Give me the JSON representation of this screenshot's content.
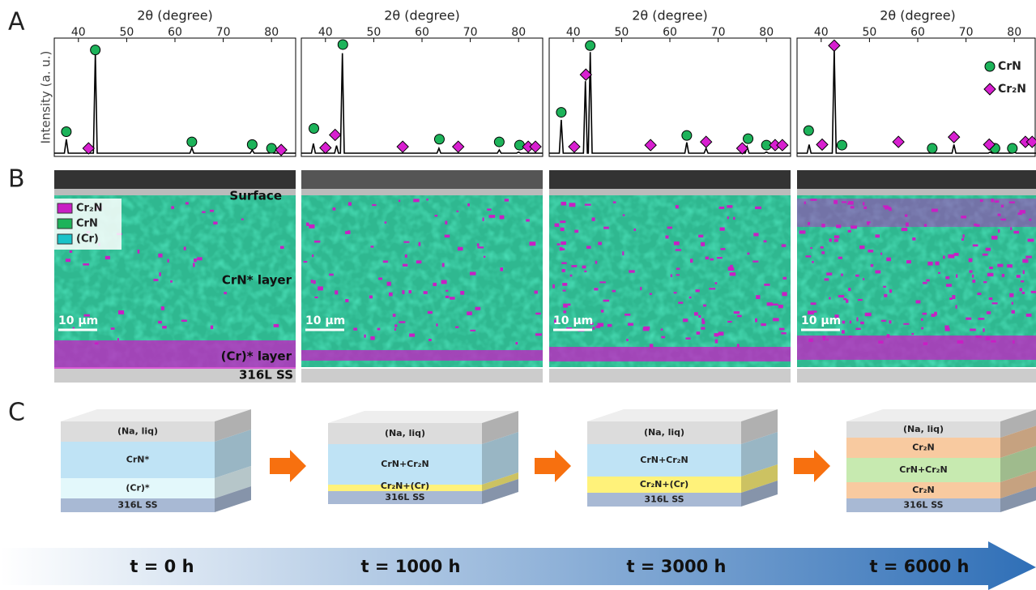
{
  "panel_labels": [
    "A",
    "B",
    "C"
  ],
  "chart_data": [
    {
      "type": "line",
      "x_label": "2θ (degree)",
      "y_label": "Intensity (a. u.)",
      "xlim": [
        35,
        85
      ],
      "xticks": [
        40,
        50,
        60,
        70,
        80
      ],
      "ylim": [
        0,
        110
      ],
      "color": "#000000",
      "x": [
        35,
        37.1,
        37.5,
        37.9,
        43.1,
        43.5,
        43.9,
        63.1,
        63.5,
        63.9,
        75.6,
        76,
        76.4,
        79.6,
        80,
        80.4,
        85
      ],
      "values": [
        3,
        3,
        16,
        3,
        3,
        96,
        3,
        3,
        8,
        3,
        3,
        6,
        3,
        3,
        4.5,
        3,
        3
      ],
      "legend": false,
      "series": [
        {
          "name": "CrN",
          "color": "#1db35a",
          "marker": "circle",
          "x": [
            37.5,
            43.5,
            63.5,
            76,
            80
          ],
          "values": [
            23,
            99,
            13.5,
            11,
            7.5
          ]
        },
        {
          "name": "Cr₂N",
          "color": "#d81fd0",
          "marker": "diamond",
          "x": [
            42.1,
            82
          ],
          "values": [
            7.5,
            6
          ]
        }
      ]
    },
    {
      "type": "line",
      "x_label": "2θ (degree)",
      "xlim": [
        35,
        85
      ],
      "xticks": [
        40,
        50,
        60,
        70,
        80
      ],
      "ylim": [
        0,
        110
      ],
      "color": "#000000",
      "x": [
        35,
        37.1,
        37.5,
        37.9,
        41.9,
        42.3,
        42.7,
        43.1,
        43.5,
        43.9,
        63.1,
        63.5,
        63.9,
        75.6,
        76,
        76.4,
        79.6,
        80,
        80.4,
        85
      ],
      "values": [
        3,
        3,
        12,
        3,
        3,
        10,
        3,
        3,
        96,
        3,
        3,
        7.5,
        3,
        3,
        6,
        3,
        3,
        4,
        3,
        3
      ],
      "legend": false,
      "series": [
        {
          "name": "CrN",
          "color": "#1db35a",
          "marker": "circle",
          "x": [
            37.6,
            43.6,
            63.6,
            76,
            80.2
          ],
          "values": [
            26,
            104,
            16,
            13.5,
            10.5
          ]
        },
        {
          "name": "Cr₂N",
          "color": "#d81fd0",
          "marker": "diamond",
          "x": [
            40,
            42,
            56,
            67.5,
            82,
            83.5
          ],
          "values": [
            8,
            20,
            9,
            9,
            9,
            9
          ]
        }
      ]
    },
    {
      "type": "line",
      "x_label": "2θ (degree)",
      "xlim": [
        35,
        85
      ],
      "xticks": [
        40,
        50,
        60,
        70,
        80
      ],
      "ylim": [
        0,
        110
      ],
      "color": "#000000",
      "x": [
        35,
        37.1,
        37.5,
        37.9,
        42.1,
        42.5,
        42.9,
        43.1,
        43.5,
        43.9,
        63.1,
        63.5,
        63.9,
        67.1,
        67.5,
        67.9,
        75.6,
        76,
        76.4,
        79.6,
        80,
        80.4,
        85
      ],
      "values": [
        3,
        3,
        34,
        3,
        3,
        70,
        3,
        3,
        97,
        3,
        3,
        13,
        3,
        3,
        7.5,
        3,
        3,
        9,
        3,
        3,
        4,
        3,
        3
      ],
      "legend": false,
      "series": [
        {
          "name": "CrN",
          "color": "#1db35a",
          "marker": "circle",
          "x": [
            37.5,
            43.5,
            63.5,
            76.2,
            80
          ],
          "values": [
            41,
            103,
            19.5,
            16.5,
            10.5
          ]
        },
        {
          "name": "Cr₂N",
          "color": "#d81fd0",
          "marker": "diamond",
          "x": [
            40.2,
            42.6,
            56,
            67.5,
            75,
            81.8,
            83.3
          ],
          "values": [
            9,
            76,
            10.5,
            13.5,
            7.5,
            10.5,
            10.5
          ]
        }
      ]
    },
    {
      "type": "line",
      "x_label": "2θ (degree)",
      "xlim": [
        35,
        85
      ],
      "xticks": [
        40,
        50,
        60,
        70,
        80
      ],
      "ylim": [
        0,
        110
      ],
      "color": "#000000",
      "x": [
        35,
        37.1,
        37.5,
        37.9,
        42.3,
        42.7,
        43.1,
        67.1,
        67.5,
        67.9,
        74.6,
        75,
        75.4,
        79.6,
        80,
        80.4,
        85
      ],
      "values": [
        3,
        3,
        11,
        3,
        3,
        100,
        3,
        3,
        11,
        3,
        3,
        4,
        3,
        3,
        4,
        3,
        3
      ],
      "legend": true,
      "series": [
        {
          "name": "CrN",
          "color": "#1db35a",
          "marker": "circle",
          "x": [
            37.4,
            44.3,
            63,
            76,
            79.6
          ],
          "values": [
            24,
            10.5,
            7.5,
            7.5,
            7.5
          ]
        },
        {
          "name": "Cr₂N",
          "color": "#d81fd0",
          "marker": "diamond",
          "x": [
            40.2,
            42.7,
            56,
            67.5,
            74.8,
            82.3,
            83.7
          ],
          "values": [
            11,
            103,
            13.5,
            18,
            11,
            13.5,
            13.5
          ]
        }
      ]
    }
  ],
  "maps": {
    "legend": [
      "Cr₂N",
      "CrN",
      "(Cr)"
    ],
    "surface": "Surface",
    "crn_layer": "CrN* layer",
    "cr_layer": "(Cr)* layer",
    "substrate": "316L SS",
    "scale_bars": [
      "10 µm",
      "10 µm",
      "10 µm",
      "10 µm"
    ]
  },
  "schematic": {
    "stages": [
      {
        "time": "t = 0 h",
        "layers": [
          "(Na, liq)",
          "CrN*",
          "(Cr)*",
          "316L SS"
        ]
      },
      {
        "time": "t = 1000 h",
        "layers": [
          "(Na, liq)",
          "CrN+Cr₂N",
          "Cr₂N+(Cr)",
          "316L SS"
        ]
      },
      {
        "time": "t = 3000 h",
        "layers": [
          "(Na, liq)",
          "CrN+Cr₂N",
          "Cr₂N+(Cr)",
          "316L SS"
        ]
      },
      {
        "time": "t = 6000 h",
        "layers": [
          "(Na, liq)",
          "Cr₂N",
          "CrN+Cr₂N",
          "Cr₂N",
          "316L SS"
        ]
      }
    ]
  }
}
